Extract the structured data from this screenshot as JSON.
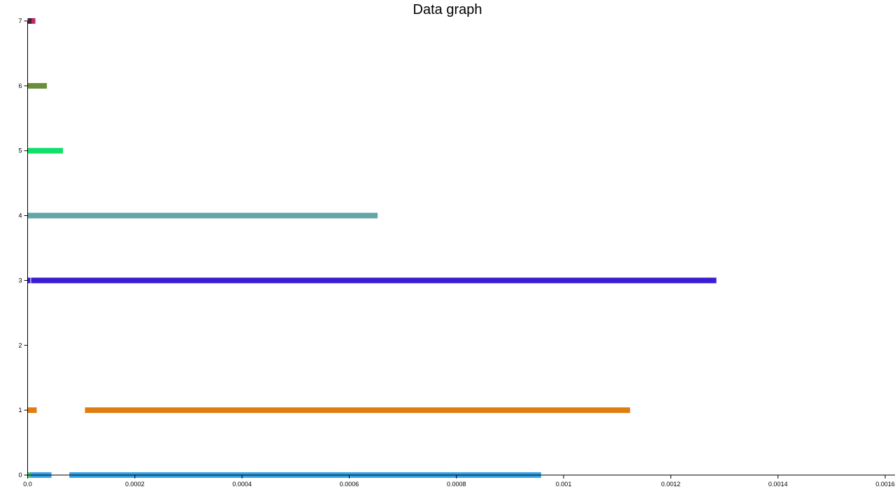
{
  "chart_data": {
    "type": "bar",
    "title": "Data graph",
    "xlabel": "",
    "ylabel": "",
    "xlim": [
      0,
      0.0016
    ],
    "ylim": [
      0,
      7
    ],
    "grid": false,
    "x_ticks": [
      "0.0",
      "0.0002",
      "0.0004",
      "0.0006",
      "0.0008",
      "0.001",
      "0.0012",
      "0.0014",
      "0.0016"
    ],
    "y_ticks": [
      "0",
      "1",
      "2",
      "3",
      "4",
      "5",
      "6",
      "7"
    ],
    "segments": [
      {
        "row": 0,
        "start": 0.0,
        "end": 5.2e-06,
        "color": "#3dd64a"
      },
      {
        "row": 0,
        "start": 5.2e-06,
        "end": 4.45e-05,
        "color": "#33a3e8"
      },
      {
        "row": 0,
        "start": 7.78e-05,
        "end": 0.000958,
        "color": "#33a3e8"
      },
      {
        "row": 1,
        "start": 0.0,
        "end": 1.7e-05,
        "color": "#e07c10"
      },
      {
        "row": 1,
        "start": 0.000107,
        "end": 0.001124,
        "color": "#e07c10"
      },
      {
        "row": 3,
        "start": 0.0,
        "end": 5.2e-06,
        "color": "#3a1cd4"
      },
      {
        "row": 3,
        "start": 6.5e-06,
        "end": 0.001285,
        "color": "#3a1cd4"
      },
      {
        "row": 4,
        "start": 0.0,
        "end": 0.000653,
        "color": "#61a5a8"
      },
      {
        "row": 5,
        "start": 0.0,
        "end": 6.6e-05,
        "color": "#0ee06a"
      },
      {
        "row": 6,
        "start": 0.0,
        "end": 3.6e-05,
        "color": "#6b8c3a"
      },
      {
        "row": 7,
        "start": 0.0,
        "end": 8e-06,
        "color": "#4a1f3c"
      },
      {
        "row": 7,
        "start": 8e-06,
        "end": 1.45e-05,
        "color": "#c4276a"
      }
    ]
  }
}
